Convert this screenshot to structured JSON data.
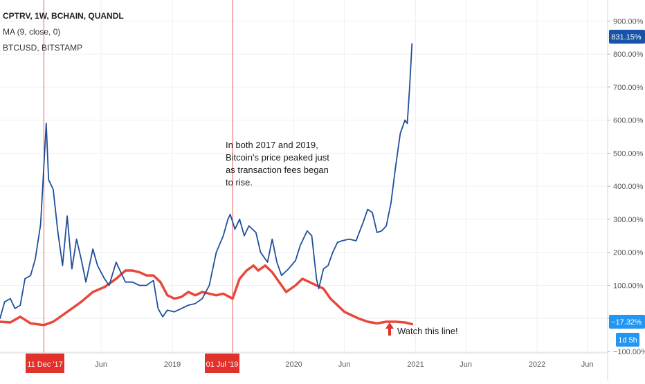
{
  "legend": {
    "title": "CPTRV, 1W, BCHAIN, QUANDL",
    "ma": "MA (9, close, 0)",
    "btc": "BTCUSD, BITSTAMP"
  },
  "annotation": {
    "lines": [
      "In both 2017 and 2019,",
      "Bitcoin's price peaked just",
      "as transaction fees began",
      "to rise."
    ],
    "watch": "Watch this line!"
  },
  "badges": {
    "top_value": "831.15%",
    "bottom_value": "−17.32%",
    "countdown": "1d 5h",
    "marker1": "11 Dec '17",
    "marker2": "01 Jul '19"
  },
  "colors": {
    "btc": "#1f4e9c",
    "ma": "#e8473a",
    "marker": "#e0312a",
    "badge_blue": "#1753a8",
    "badge_light": "#2196f3",
    "grid": "#eef0f3",
    "axis_text": "#555555"
  },
  "chart_data": {
    "type": "line",
    "ylim": [
      -100,
      930
    ],
    "y_ticks": [
      900,
      800,
      700,
      600,
      500,
      400,
      300,
      200,
      100,
      0,
      -100
    ],
    "y_tick_labels": [
      "900.00%",
      "800.00%",
      "700.00%",
      "600.00%",
      "500.00%",
      "400.00%",
      "300.00%",
      "200.00%",
      "100.00%",
      "0.00%",
      "−100.00%"
    ],
    "xlim": [
      "2017-08-01",
      "2022-08-01"
    ],
    "x_ticks": [
      {
        "date": "2018-06-01",
        "label": "Jun"
      },
      {
        "date": "2019-01-01",
        "label": "2019"
      },
      {
        "date": "2020-01-01",
        "label": "2020"
      },
      {
        "date": "2020-06-01",
        "label": "Jun"
      },
      {
        "date": "2021-01-01",
        "label": "2021"
      },
      {
        "date": "2021-06-01",
        "label": "Jun"
      },
      {
        "date": "2022-01-01",
        "label": "2022"
      },
      {
        "date": "2022-06-01",
        "label": "Jun"
      }
    ],
    "markers": [
      "2017-12-11",
      "2019-07-01"
    ],
    "series": [
      {
        "name": "BTCUSD, BITSTAMP",
        "color": "#1f4e9c",
        "points": [
          [
            "2017-08-01",
            0
          ],
          [
            "2017-08-15",
            50
          ],
          [
            "2017-09-01",
            60
          ],
          [
            "2017-09-15",
            30
          ],
          [
            "2017-10-01",
            40
          ],
          [
            "2017-10-15",
            120
          ],
          [
            "2017-11-01",
            130
          ],
          [
            "2017-11-15",
            180
          ],
          [
            "2017-12-01",
            285
          ],
          [
            "2017-12-18",
            590
          ],
          [
            "2017-12-25",
            420
          ],
          [
            "2018-01-08",
            390
          ],
          [
            "2018-01-22",
            260
          ],
          [
            "2018-02-05",
            160
          ],
          [
            "2018-02-19",
            310
          ],
          [
            "2018-03-05",
            150
          ],
          [
            "2018-03-19",
            240
          ],
          [
            "2018-04-02",
            180
          ],
          [
            "2018-04-16",
            110
          ],
          [
            "2018-05-07",
            210
          ],
          [
            "2018-05-21",
            160
          ],
          [
            "2018-06-11",
            120
          ],
          [
            "2018-06-25",
            100
          ],
          [
            "2018-07-16",
            170
          ],
          [
            "2018-07-30",
            140
          ],
          [
            "2018-08-13",
            110
          ],
          [
            "2018-09-03",
            110
          ],
          [
            "2018-09-24",
            100
          ],
          [
            "2018-10-15",
            100
          ],
          [
            "2018-11-05",
            115
          ],
          [
            "2018-11-19",
            30
          ],
          [
            "2018-12-03",
            5
          ],
          [
            "2018-12-17",
            25
          ],
          [
            "2019-01-07",
            20
          ],
          [
            "2019-01-28",
            30
          ],
          [
            "2019-02-18",
            40
          ],
          [
            "2019-03-11",
            45
          ],
          [
            "2019-04-01",
            60
          ],
          [
            "2019-04-22",
            100
          ],
          [
            "2019-05-13",
            200
          ],
          [
            "2019-06-03",
            250
          ],
          [
            "2019-06-17",
            300
          ],
          [
            "2019-06-24",
            315
          ],
          [
            "2019-07-08",
            270
          ],
          [
            "2019-07-22",
            300
          ],
          [
            "2019-08-05",
            250
          ],
          [
            "2019-08-19",
            280
          ],
          [
            "2019-09-09",
            260
          ],
          [
            "2019-09-23",
            200
          ],
          [
            "2019-10-14",
            170
          ],
          [
            "2019-10-28",
            240
          ],
          [
            "2019-11-11",
            170
          ],
          [
            "2019-11-25",
            130
          ],
          [
            "2019-12-16",
            150
          ],
          [
            "2020-01-06",
            175
          ],
          [
            "2020-01-20",
            220
          ],
          [
            "2020-02-10",
            265
          ],
          [
            "2020-02-24",
            250
          ],
          [
            "2020-03-09",
            120
          ],
          [
            "2020-03-16",
            90
          ],
          [
            "2020-03-30",
            150
          ],
          [
            "2020-04-13",
            160
          ],
          [
            "2020-04-27",
            200
          ],
          [
            "2020-05-11",
            230
          ],
          [
            "2020-05-25",
            235
          ],
          [
            "2020-06-15",
            240
          ],
          [
            "2020-07-06",
            235
          ],
          [
            "2020-07-27",
            290
          ],
          [
            "2020-08-10",
            330
          ],
          [
            "2020-08-24",
            320
          ],
          [
            "2020-09-07",
            260
          ],
          [
            "2020-09-21",
            265
          ],
          [
            "2020-10-05",
            280
          ],
          [
            "2020-10-19",
            350
          ],
          [
            "2020-11-02",
            460
          ],
          [
            "2020-11-16",
            560
          ],
          [
            "2020-11-30",
            600
          ],
          [
            "2020-12-07",
            590
          ],
          [
            "2020-12-14",
            700
          ],
          [
            "2020-12-21",
            831.15
          ]
        ]
      },
      {
        "name": "MA (9, close, 0)",
        "color": "#e8473a",
        "points": [
          [
            "2017-08-01",
            -10
          ],
          [
            "2017-09-01",
            -12
          ],
          [
            "2017-10-01",
            5
          ],
          [
            "2017-11-01",
            -15
          ],
          [
            "2017-12-11",
            -20
          ],
          [
            "2018-01-08",
            -10
          ],
          [
            "2018-02-05",
            10
          ],
          [
            "2018-03-05",
            30
          ],
          [
            "2018-04-02",
            50
          ],
          [
            "2018-05-07",
            80
          ],
          [
            "2018-06-11",
            95
          ],
          [
            "2018-07-16",
            120
          ],
          [
            "2018-08-13",
            145
          ],
          [
            "2018-09-03",
            145
          ],
          [
            "2018-09-24",
            140
          ],
          [
            "2018-10-15",
            130
          ],
          [
            "2018-11-05",
            130
          ],
          [
            "2018-11-26",
            110
          ],
          [
            "2018-12-17",
            70
          ],
          [
            "2019-01-07",
            60
          ],
          [
            "2019-01-28",
            65
          ],
          [
            "2019-02-18",
            80
          ],
          [
            "2019-03-11",
            70
          ],
          [
            "2019-04-01",
            80
          ],
          [
            "2019-04-22",
            75
          ],
          [
            "2019-05-13",
            70
          ],
          [
            "2019-06-03",
            75
          ],
          [
            "2019-07-01",
            60
          ],
          [
            "2019-07-22",
            120
          ],
          [
            "2019-08-12",
            145
          ],
          [
            "2019-09-02",
            160
          ],
          [
            "2019-09-16",
            145
          ],
          [
            "2019-10-07",
            160
          ],
          [
            "2019-10-28",
            140
          ],
          [
            "2019-11-18",
            110
          ],
          [
            "2019-12-09",
            80
          ],
          [
            "2020-01-06",
            100
          ],
          [
            "2020-01-27",
            120
          ],
          [
            "2020-02-17",
            110
          ],
          [
            "2020-03-09",
            100
          ],
          [
            "2020-03-30",
            90
          ],
          [
            "2020-04-20",
            60
          ],
          [
            "2020-05-11",
            40
          ],
          [
            "2020-06-01",
            20
          ],
          [
            "2020-06-22",
            10
          ],
          [
            "2020-07-13",
            0
          ],
          [
            "2020-08-10",
            -10
          ],
          [
            "2020-09-07",
            -15
          ],
          [
            "2020-10-05",
            -10
          ],
          [
            "2020-11-02",
            -10
          ],
          [
            "2020-11-30",
            -12
          ],
          [
            "2020-12-21",
            -17.32
          ]
        ]
      }
    ]
  }
}
